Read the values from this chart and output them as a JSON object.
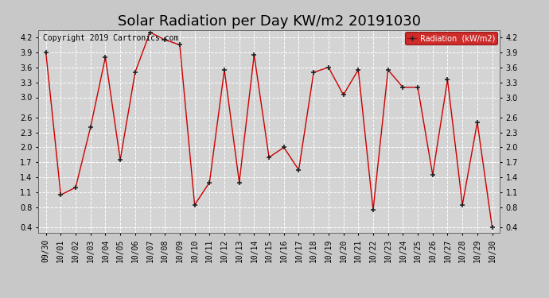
{
  "title": "Solar Radiation per Day KW/m2 20191030",
  "copyright": "Copyright 2019 Cartronics.com",
  "legend_label": "Radiation  (kW/m2)",
  "dates": [
    "09/30",
    "10/01",
    "10/02",
    "10/03",
    "10/04",
    "10/05",
    "10/06",
    "10/07",
    "10/08",
    "10/09",
    "10/10",
    "10/11",
    "10/12",
    "10/13",
    "10/14",
    "10/15",
    "10/16",
    "10/17",
    "10/18",
    "10/19",
    "10/20",
    "10/21",
    "10/22",
    "10/23",
    "10/24",
    "10/25",
    "10/26",
    "10/27",
    "10/28",
    "10/29",
    "10/30"
  ],
  "values": [
    3.9,
    1.05,
    1.2,
    2.4,
    3.8,
    1.75,
    3.5,
    4.3,
    4.15,
    4.05,
    0.85,
    1.3,
    3.55,
    1.3,
    3.85,
    1.8,
    2.0,
    1.55,
    3.5,
    3.6,
    3.05,
    3.55,
    0.75,
    3.55,
    3.2,
    3.2,
    1.45,
    3.35,
    0.85,
    2.5,
    0.4
  ],
  "line_color": "#cc0000",
  "marker": "+",
  "marker_color": "#222222",
  "bg_color": "#c8c8c8",
  "plot_bg_color": "#d4d4d4",
  "grid_color": "#ffffff",
  "ylim": [
    0.3,
    4.35
  ],
  "yticks": [
    0.4,
    0.8,
    1.1,
    1.4,
    1.7,
    2.0,
    2.3,
    2.6,
    3.0,
    3.3,
    3.6,
    3.9,
    4.2
  ],
  "title_fontsize": 13,
  "tick_fontsize": 7,
  "copyright_fontsize": 7,
  "legend_bg": "#cc0000",
  "legend_text_color": "white"
}
